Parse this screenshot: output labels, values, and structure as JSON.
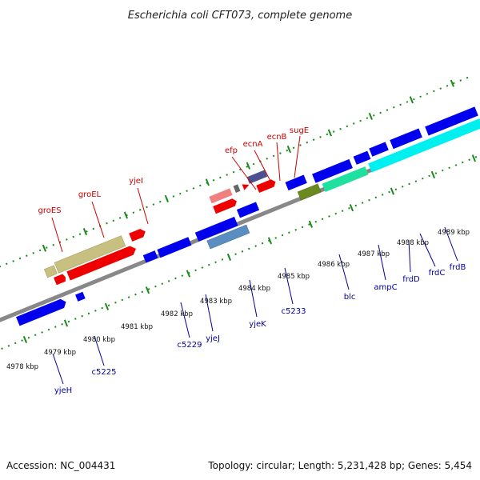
{
  "title": "Escherichia coli CFT073, complete genome",
  "footer": {
    "accession": "Accession: NC_004431",
    "summary": "Topology: circular; Length: 5,231,428 bp; Genes: 5,454"
  },
  "scale_labels": [
    "4978 kbp",
    "4979 kbp",
    "4980 kbp",
    "4981 kbp",
    "4982 kbp",
    "4983 kbp",
    "4984 kbp",
    "4985 kbp",
    "4986 kbp",
    "4987 kbp",
    "4988 kbp",
    "4989 kbp"
  ],
  "gene_labels_top": [
    "groES",
    "groEL",
    "yjeI",
    "efp",
    "ecnA",
    "ecnB",
    "sugE"
  ],
  "gene_labels_bottom": [
    "yjeH",
    "c5225",
    "c5229",
    "yjeJ",
    "yjeK",
    "c5233",
    "blc",
    "ampC",
    "frdD",
    "frdC",
    "frdB"
  ],
  "colors": {
    "red": "#ff0000",
    "blue": "#0000ee",
    "olive": "#c8c080",
    "pink": "#f08080",
    "slate": "#4a5090",
    "steel": "#5b8ec0",
    "green": "#6a8a20",
    "mint": "#20e0a0",
    "cyan": "#00f0f0",
    "backbone": "#888888",
    "ticks": "#1a8a1a",
    "top_label": "#cc0000",
    "bottom_label": "#000099"
  }
}
